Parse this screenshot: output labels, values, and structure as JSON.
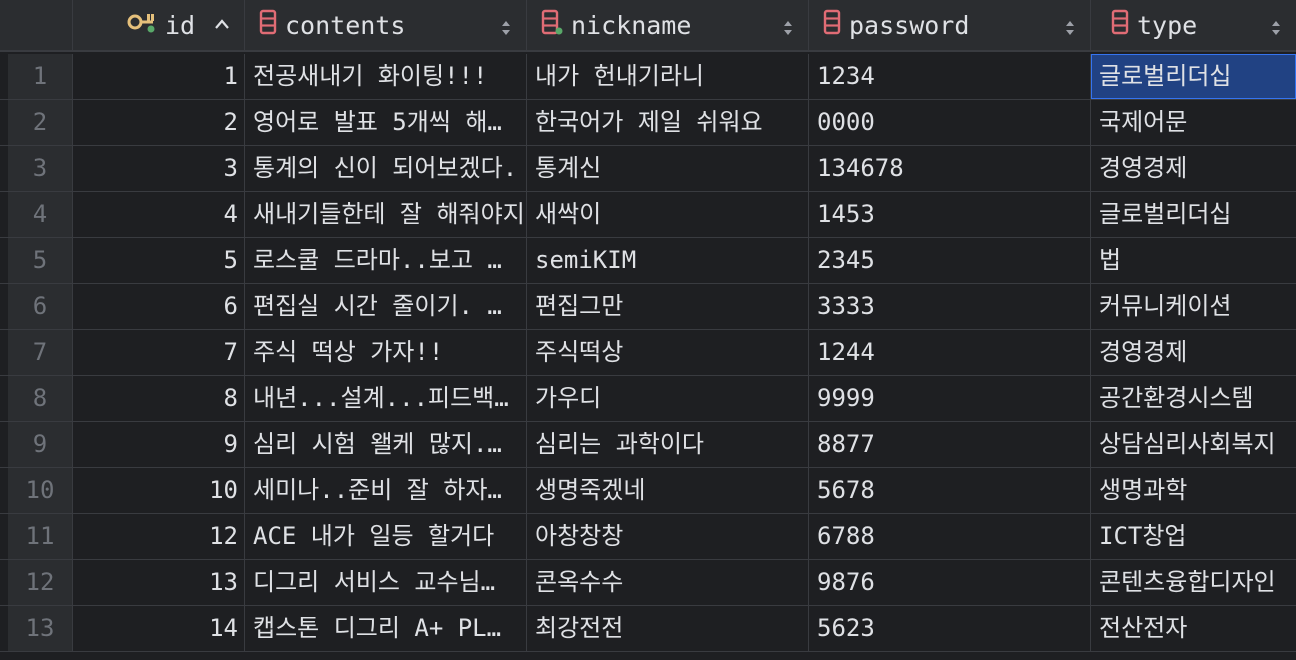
{
  "colors": {
    "background": "#1e1f22",
    "header": "#2b2d30",
    "grid_line": "#393b40",
    "text": "#dfe1e5",
    "row_number": "#6f737a",
    "selection": "#214283",
    "key_icon": "#e5c07b",
    "column_icon": "#e06c75",
    "not_null_dot": "#59a869"
  },
  "columns": [
    {
      "label": "id",
      "icon": "primary-key-icon",
      "sort": "ascending"
    },
    {
      "label": "contents",
      "icon": "column-icon",
      "sort": "none"
    },
    {
      "label": "nickname",
      "icon": "column-icon",
      "sort": "none"
    },
    {
      "label": "password",
      "icon": "column-icon",
      "sort": "none"
    },
    {
      "label": "type",
      "icon": "column-icon",
      "sort": "none"
    }
  ],
  "rows": [
    {
      "n": "1",
      "id": "1",
      "contents": "전공새내기 화이팅!!!",
      "nickname": "내가 헌내기라니",
      "password": "1234",
      "type": "글로벌리더십"
    },
    {
      "n": "2",
      "id": "2",
      "contents": "영어로 발표 5개씩 해…",
      "nickname": "한국어가 제일 쉬워요",
      "password": "0000",
      "type": "국제어문"
    },
    {
      "n": "3",
      "id": "3",
      "contents": "통계의 신이 되어보겠다.",
      "nickname": "통계신",
      "password": "134678",
      "type": "경영경제"
    },
    {
      "n": "4",
      "id": "4",
      "contents": "새내기들한테 잘 해줘야지",
      "nickname": "새싹이",
      "password": "1453",
      "type": "글로벌리더십"
    },
    {
      "n": "5",
      "id": "5",
      "contents": "로스쿨 드라마..보고 …",
      "nickname": "semiKIM",
      "password": "2345",
      "type": "법"
    },
    {
      "n": "6",
      "id": "6",
      "contents": "편집실 시간 줄이기. …",
      "nickname": "편집그만",
      "password": "3333",
      "type": "커뮤니케이션"
    },
    {
      "n": "7",
      "id": "7",
      "contents": "주식 떡상 가자!!",
      "nickname": "주식떡상",
      "password": "1244",
      "type": "경영경제"
    },
    {
      "n": "8",
      "id": "8",
      "contents": "내년...설계...피드백…",
      "nickname": "가우디",
      "password": "9999",
      "type": "공간환경시스템"
    },
    {
      "n": "9",
      "id": "9",
      "contents": "심리 시험 왤케 많지.…",
      "nickname": "심리는 과학이다",
      "password": "8877",
      "type": "상담심리사회복지"
    },
    {
      "n": "10",
      "id": "10",
      "contents": "세미나..준비 잘 하자…",
      "nickname": "생명죽겠네",
      "password": "5678",
      "type": "생명과학"
    },
    {
      "n": "11",
      "id": "12",
      "contents": "ACE 내가 일등 할거다",
      "nickname": "아창창창",
      "password": "6788",
      "type": "ICT창업"
    },
    {
      "n": "12",
      "id": "13",
      "contents": "디그리 서비스 교수님…",
      "nickname": "콘옥수수",
      "password": "9876",
      "type": "콘텐츠융합디자인"
    },
    {
      "n": "13",
      "id": "14",
      "contents": "캡스톤 디그리 A+ PL…",
      "nickname": "최강전전",
      "password": "5623",
      "type": "전산전자"
    }
  ]
}
